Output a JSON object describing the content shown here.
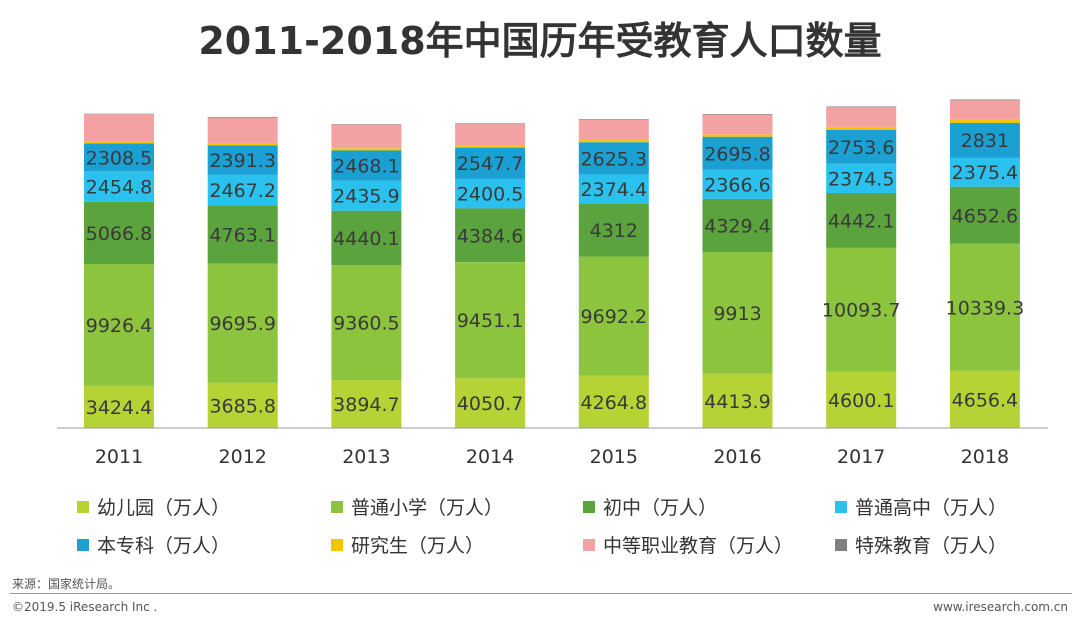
{
  "title": "2011-2018年中国历年受教育人口数量",
  "chart_data": {
    "type": "bar",
    "stacked": true,
    "title": "2011-2018年中国历年受教育人口数量",
    "categories": [
      "2011",
      "2012",
      "2013",
      "2014",
      "2015",
      "2016",
      "2017",
      "2018"
    ],
    "series": [
      {
        "name": "幼儿园（万人）",
        "color": "#b5d334",
        "labeled": true,
        "values": [
          3424.4,
          3685.8,
          3894.7,
          4050.7,
          4264.8,
          4413.9,
          4600.1,
          4656.4
        ],
        "labels": [
          "3424.4",
          "3685.8",
          "3894.7",
          "4050.7",
          "4264.8",
          "4413.9",
          "4600.1",
          "4656.4"
        ]
      },
      {
        "name": "普通小学（万人）",
        "color": "#8cc43e",
        "labeled": true,
        "values": [
          9926.4,
          9695.9,
          9360.5,
          9451.1,
          9692.2,
          9913,
          10093.7,
          10339.3
        ],
        "labels": [
          "9926.4",
          "9695.9",
          "9360.5",
          "9451.1",
          "9692.2",
          "9913",
          "10093.7",
          "10339.3"
        ]
      },
      {
        "name": "初中（万人）",
        "color": "#5ba33d",
        "labeled": true,
        "values": [
          5066.8,
          4763.1,
          4440.1,
          4384.6,
          4312,
          4329.4,
          4442.1,
          4652.6
        ],
        "labels": [
          "5066.8",
          "4763.1",
          "4440.1",
          "4384.6",
          "4312",
          "4329.4",
          "4442.1",
          "4652.6"
        ]
      },
      {
        "name": "普通高中（万人）",
        "color": "#2ac1ee",
        "labeled": true,
        "values": [
          2454.8,
          2467.2,
          2435.9,
          2400.5,
          2374.4,
          2366.6,
          2374.5,
          2375.4
        ],
        "labels": [
          "2454.8",
          "2467.2",
          "2435.9",
          "2400.5",
          "2374.4",
          "2366.6",
          "2374.5",
          "2375.4"
        ]
      },
      {
        "name": "本专科（万人）",
        "color": "#1aa0d3",
        "labeled": true,
        "values": [
          2308.5,
          2391.3,
          2468.1,
          2547.7,
          2625.3,
          2695.8,
          2753.6,
          2831
        ],
        "labels": [
          "2308.5",
          "2391.3",
          "2468.1",
          "2547.7",
          "2625.3",
          "2695.8",
          "2753.6",
          "2831"
        ]
      },
      {
        "name": "研究生（万人）",
        "color": "#f5c400",
        "labeled": false,
        "values": [
          164.6,
          172,
          179.4,
          184.8,
          191.1,
          198.1,
          263.9,
          273.1
        ]
      },
      {
        "name": "中等职业教育（万人）",
        "color": "#f4a1a4",
        "labeled": false,
        "values": [
          2205.3,
          2113.7,
          1923,
          1755.3,
          1656.7,
          1599,
          1592.5,
          1555.3
        ]
      },
      {
        "name": "特殊教育（万人）",
        "color": "#808080",
        "labeled": false,
        "values": [
          39.9,
          37.9,
          36.8,
          39.5,
          44.2,
          49.2,
          57.9,
          66.6
        ]
      }
    ],
    "ylim": [
      0,
      28500
    ],
    "grid": false,
    "legend_position": "bottom"
  },
  "footer": {
    "source": "来源：国家统计局。",
    "copyright": "©2019.5 iResearch Inc .",
    "website": "www.iresearch.com.cn"
  }
}
